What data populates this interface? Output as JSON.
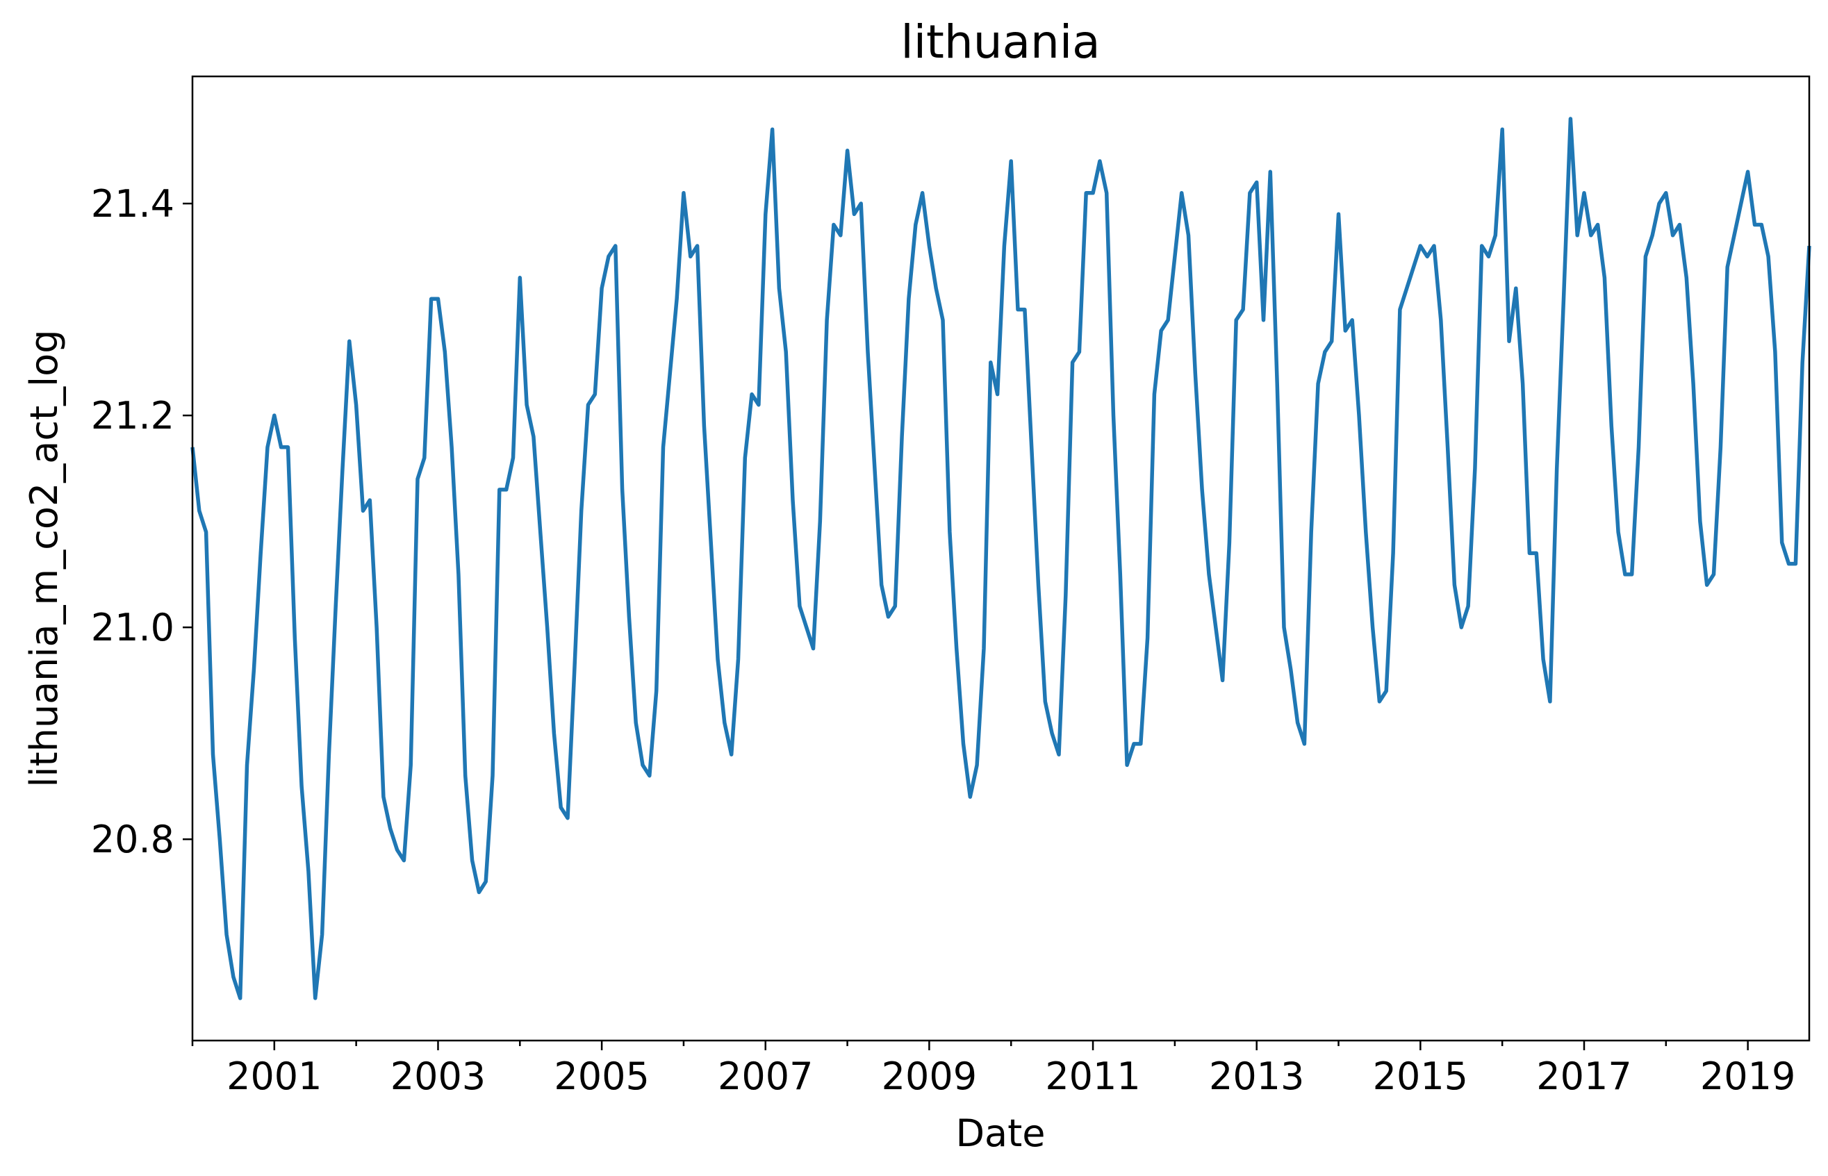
{
  "chart_data": {
    "type": "line",
    "title": "lithuania",
    "xlabel": "Date",
    "ylabel": "lithuania_m_co2_act_log",
    "xlim": [
      "2000-01",
      "2019-10"
    ],
    "ylim": [
      20.61,
      21.52
    ],
    "x_major_ticks": [
      "2001",
      "2003",
      "2005",
      "2007",
      "2009",
      "2011",
      "2013",
      "2015",
      "2017",
      "2019"
    ],
    "x_minor_ticks": [
      "2000",
      "2002",
      "2004",
      "2006",
      "2008",
      "2010",
      "2012",
      "2014",
      "2016",
      "2018"
    ],
    "y_ticks": [
      20.8,
      21.0,
      21.2,
      21.4
    ],
    "y_tick_labels": [
      "20.8",
      "21.0",
      "21.2",
      "21.4"
    ],
    "grid": false,
    "legend": "none",
    "series": [
      {
        "color": "#1f77b4",
        "x": [
          "2000-01",
          "2000-02",
          "2000-03",
          "2000-04",
          "2000-05",
          "2000-06",
          "2000-07",
          "2000-08",
          "2000-09",
          "2000-10",
          "2000-11",
          "2000-12",
          "2001-01",
          "2001-02",
          "2001-03",
          "2001-04",
          "2001-05",
          "2001-06",
          "2001-07",
          "2001-08",
          "2001-09",
          "2001-10",
          "2001-11",
          "2001-12",
          "2002-01",
          "2002-02",
          "2002-03",
          "2002-04",
          "2002-05",
          "2002-06",
          "2002-07",
          "2002-08",
          "2002-09",
          "2002-10",
          "2002-11",
          "2002-12",
          "2003-01",
          "2003-02",
          "2003-03",
          "2003-04",
          "2003-05",
          "2003-06",
          "2003-07",
          "2003-08",
          "2003-09",
          "2003-10",
          "2003-11",
          "2003-12",
          "2004-01",
          "2004-02",
          "2004-03",
          "2004-04",
          "2004-05",
          "2004-06",
          "2004-07",
          "2004-08",
          "2004-09",
          "2004-10",
          "2004-11",
          "2004-12",
          "2005-01",
          "2005-02",
          "2005-03",
          "2005-04",
          "2005-05",
          "2005-06",
          "2005-07",
          "2005-08",
          "2005-09",
          "2005-10",
          "2005-11",
          "2005-12",
          "2006-01",
          "2006-02",
          "2006-03",
          "2006-04",
          "2006-05",
          "2006-06",
          "2006-07",
          "2006-08",
          "2006-09",
          "2006-10",
          "2006-11",
          "2006-12",
          "2007-01",
          "2007-02",
          "2007-03",
          "2007-04",
          "2007-05",
          "2007-06",
          "2007-07",
          "2007-08",
          "2007-09",
          "2007-10",
          "2007-11",
          "2007-12",
          "2008-01",
          "2008-02",
          "2008-03",
          "2008-04",
          "2008-05",
          "2008-06",
          "2008-07",
          "2008-08",
          "2008-09",
          "2008-10",
          "2008-11",
          "2008-12",
          "2009-01",
          "2009-02",
          "2009-03",
          "2009-04",
          "2009-05",
          "2009-06",
          "2009-07",
          "2009-08",
          "2009-09",
          "2009-10",
          "2009-11",
          "2009-12",
          "2010-01",
          "2010-02",
          "2010-03",
          "2010-04",
          "2010-05",
          "2010-06",
          "2010-07",
          "2010-08",
          "2010-09",
          "2010-10",
          "2010-11",
          "2010-12",
          "2011-01",
          "2011-02",
          "2011-03",
          "2011-04",
          "2011-05",
          "2011-06",
          "2011-07",
          "2011-08",
          "2011-09",
          "2011-10",
          "2011-11",
          "2011-12",
          "2012-01",
          "2012-02",
          "2012-03",
          "2012-04",
          "2012-05",
          "2012-06",
          "2012-07",
          "2012-08",
          "2012-09",
          "2012-10",
          "2012-11",
          "2012-12",
          "2013-01",
          "2013-02",
          "2013-03",
          "2013-04",
          "2013-05",
          "2013-06",
          "2013-07",
          "2013-08",
          "2013-09",
          "2013-10",
          "2013-11",
          "2013-12",
          "2014-01",
          "2014-02",
          "2014-03",
          "2014-04",
          "2014-05",
          "2014-06",
          "2014-07",
          "2014-08",
          "2014-09",
          "2014-10",
          "2014-11",
          "2014-12",
          "2015-01",
          "2015-02",
          "2015-03",
          "2015-04",
          "2015-05",
          "2015-06",
          "2015-07",
          "2015-08",
          "2015-09",
          "2015-10",
          "2015-11",
          "2015-12",
          "2016-01",
          "2016-02",
          "2016-03",
          "2016-04",
          "2016-05",
          "2016-06",
          "2016-07",
          "2016-08",
          "2016-09",
          "2016-10",
          "2016-11",
          "2016-12",
          "2017-01",
          "2017-02",
          "2017-03",
          "2017-04",
          "2017-05",
          "2017-06",
          "2017-07",
          "2017-08",
          "2017-09",
          "2017-10",
          "2017-11",
          "2017-12",
          "2018-01",
          "2018-02",
          "2018-03",
          "2018-04",
          "2018-05",
          "2018-06",
          "2018-07",
          "2018-08",
          "2018-09",
          "2018-10",
          "2018-11",
          "2018-12",
          "2019-01",
          "2019-02",
          "2019-03",
          "2019-04",
          "2019-05",
          "2019-06",
          "2019-07",
          "2019-08",
          "2019-09",
          "2019-10"
        ],
        "y": [
          21.17,
          21.11,
          21.09,
          20.88,
          20.8,
          20.71,
          20.67,
          20.65,
          20.87,
          20.96,
          21.07,
          21.17,
          21.2,
          21.17,
          21.17,
          20.99,
          20.85,
          20.77,
          20.65,
          20.71,
          20.88,
          21.02,
          21.15,
          21.27,
          21.21,
          21.11,
          21.12,
          21.0,
          20.84,
          20.81,
          20.79,
          20.78,
          20.87,
          21.14,
          21.16,
          21.31,
          21.31,
          21.26,
          21.17,
          21.05,
          20.86,
          20.78,
          20.75,
          20.76,
          20.86,
          21.13,
          21.13,
          21.16,
          21.33,
          21.21,
          21.18,
          21.09,
          21.0,
          20.9,
          20.83,
          20.82,
          20.96,
          21.11,
          21.21,
          21.22,
          21.32,
          21.35,
          21.36,
          21.13,
          21.01,
          20.91,
          20.87,
          20.86,
          20.94,
          21.17,
          21.24,
          21.31,
          21.41,
          21.35,
          21.36,
          21.19,
          21.08,
          20.97,
          20.91,
          20.88,
          20.97,
          21.16,
          21.22,
          21.21,
          21.39,
          21.47,
          21.32,
          21.26,
          21.12,
          21.02,
          21.0,
          20.98,
          21.1,
          21.29,
          21.38,
          21.37,
          21.45,
          21.39,
          21.4,
          21.26,
          21.15,
          21.04,
          21.01,
          21.02,
          21.18,
          21.31,
          21.38,
          21.41,
          21.36,
          21.32,
          21.29,
          21.09,
          20.98,
          20.89,
          20.84,
          20.87,
          20.98,
          21.25,
          21.22,
          21.36,
          21.44,
          21.3,
          21.3,
          21.17,
          21.04,
          20.93,
          20.9,
          20.88,
          21.03,
          21.25,
          21.26,
          21.41,
          21.41,
          21.44,
          21.41,
          21.2,
          21.05,
          20.87,
          20.89,
          20.89,
          20.99,
          21.22,
          21.28,
          21.29,
          21.35,
          21.41,
          21.37,
          21.24,
          21.13,
          21.05,
          21.0,
          20.95,
          21.08,
          21.29,
          21.3,
          21.41,
          21.42,
          21.29,
          21.43,
          21.23,
          21.0,
          20.96,
          20.91,
          20.89,
          21.09,
          21.23,
          21.26,
          21.27,
          21.39,
          21.28,
          21.29,
          21.2,
          21.09,
          21.0,
          20.93,
          20.94,
          21.07,
          21.3,
          21.32,
          21.34,
          21.36,
          21.35,
          21.36,
          21.29,
          21.17,
          21.04,
          21.0,
          21.02,
          21.15,
          21.36,
          21.35,
          21.37,
          21.47,
          21.27,
          21.32,
          21.23,
          21.07,
          21.07,
          20.97,
          20.93,
          21.15,
          21.31,
          21.48,
          21.37,
          21.41,
          21.37,
          21.38,
          21.33,
          21.19,
          21.09,
          21.05,
          21.05,
          21.17,
          21.35,
          21.37,
          21.4,
          21.41,
          21.37,
          21.38,
          21.33,
          21.23,
          21.1,
          21.04,
          21.05,
          21.17,
          21.34,
          21.37,
          21.4,
          21.43,
          21.38,
          21.38,
          21.35,
          21.26,
          21.08,
          21.06,
          21.06,
          21.25,
          21.36
        ]
      }
    ]
  }
}
